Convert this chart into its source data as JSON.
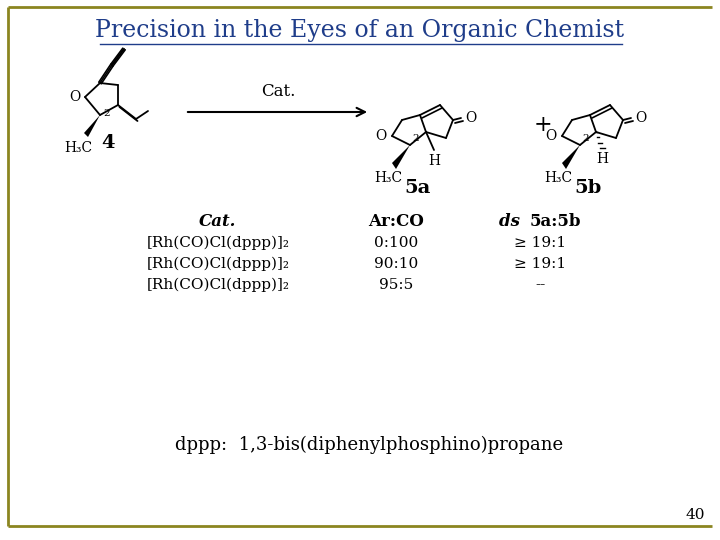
{
  "title": "Precision in the Eyes of an Organic Chemist",
  "title_color": "#1F3D8A",
  "title_fontsize": 17,
  "bg_color": "#FFFFFF",
  "border_color": "#8B8520",
  "page_number": "40",
  "cat_label": "Cat.",
  "table_header_cat": "Cat.",
  "table_header_arco": "Ar:CO",
  "table_header_ds": "ds",
  "table_header_ratio": "5a:5b",
  "table_rows": [
    [
      "[Rh(CO)Cl(dppp)]₂",
      "0:100",
      "≥ 19:1"
    ],
    [
      "[Rh(CO)Cl(dppp)]₂",
      "90:10",
      "≥ 19:1"
    ],
    [
      "[Rh(CO)Cl(dppp)]₂",
      "95:5",
      "--"
    ]
  ],
  "footnote": "dppp:  1,3-bis(diphenylphosphino)propane",
  "page_num": "40"
}
